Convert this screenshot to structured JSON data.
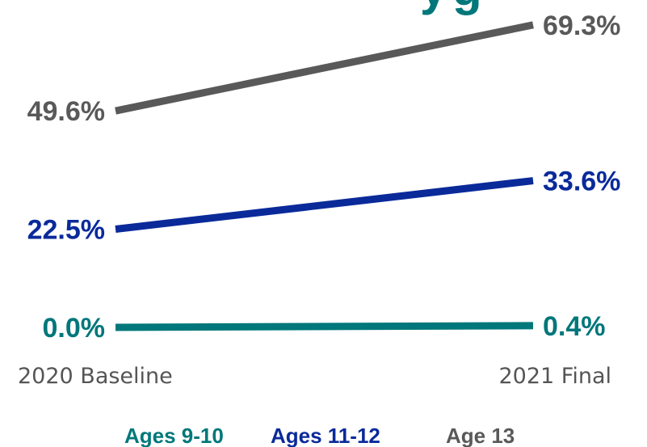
{
  "chart_data": {
    "type": "line",
    "title": "",
    "xlabel": "",
    "ylabel": "",
    "categories": [
      "2020 Baseline",
      "2021 Final"
    ],
    "series": [
      {
        "name": "Ages 9-10",
        "values": [
          0.0,
          0.4
        ],
        "labels": [
          "0.0%",
          "0.4%"
        ],
        "color": "#00777a"
      },
      {
        "name": "Ages 11-12",
        "values": [
          22.5,
          33.6
        ],
        "labels": [
          "22.5%",
          "33.6%"
        ],
        "color": "#0a2a9a"
      },
      {
        "name": "Age 13",
        "values": [
          49.6,
          69.3
        ],
        "labels": [
          "49.6%",
          "69.3%"
        ],
        "color": "#595959"
      }
    ],
    "ylim": [
      0,
      70
    ],
    "grid": false,
    "legend_position": "bottom"
  }
}
